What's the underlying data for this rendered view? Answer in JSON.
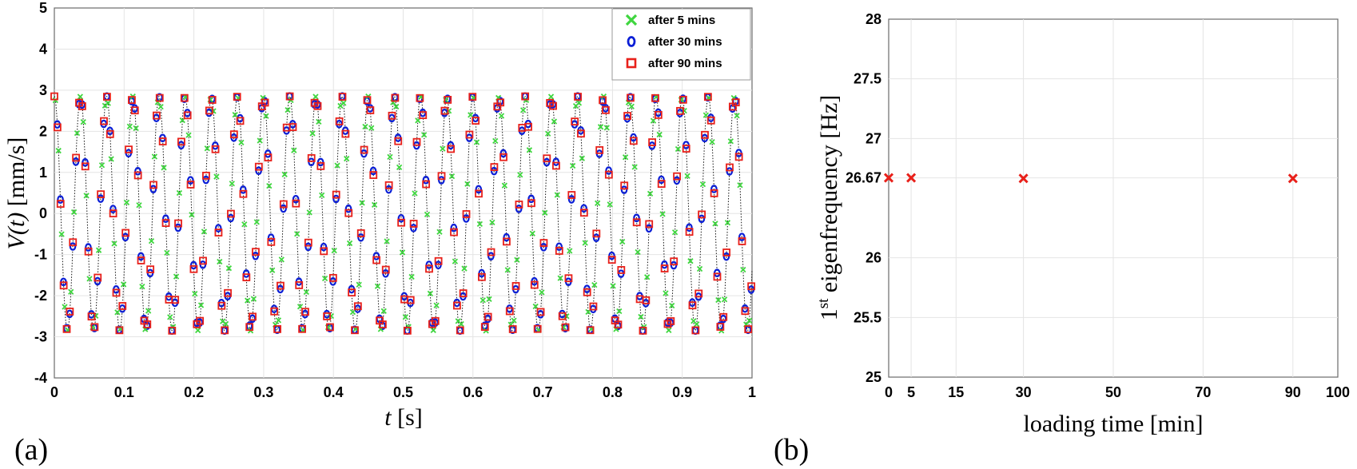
{
  "chart_data": [
    {
      "type": "scatter",
      "panel_label": "(a)",
      "xlabel_italic": "t",
      "xlabel_unit": "[s]",
      "ylabel_italic": "V(t)",
      "ylabel_unit": "[mm/s]",
      "xlim": [
        0,
        1
      ],
      "ylim": [
        -4,
        5
      ],
      "xticks": [
        "0",
        "0.1",
        "0.2",
        "0.3",
        "0.4",
        "0.5",
        "0.6",
        "0.7",
        "0.8",
        "0.9",
        "1"
      ],
      "yticks": [
        "-4",
        "-3",
        "-2",
        "-1",
        "0",
        "1",
        "2",
        "3",
        "4",
        "5"
      ],
      "grid": true,
      "legend_position": "top-right",
      "signal": {
        "amplitude": 2.85,
        "frequency_hz": 26.67,
        "sample_step_s": 0.00444,
        "connecting_line": "dotted black"
      },
      "series": [
        {
          "name": "after 5 mins",
          "marker": "x",
          "color": "#3fd63f",
          "phase_offset": 0.35
        },
        {
          "name": "after 30 mins",
          "marker": "o",
          "color": "#0b1fd6",
          "phase_offset": 0.95
        },
        {
          "name": "after 90 mins",
          "marker": "s",
          "color": "#e8201a",
          "phase_offset": 0.0
        }
      ]
    },
    {
      "type": "scatter",
      "panel_label": "(b)",
      "xlabel": "loading time [min]",
      "ylabel_base": "1",
      "ylabel_sup": "st",
      "ylabel_rest": " eigenfrequency [Hz]",
      "xlim": [
        0,
        100
      ],
      "ylim": [
        25,
        28
      ],
      "xticks": [
        0,
        5,
        15,
        30,
        50,
        70,
        90,
        100
      ],
      "yticks": [
        25,
        25.5,
        26,
        26.67,
        27,
        27.5,
        28
      ],
      "ytick_labels": [
        "25",
        "25.5",
        "26",
        "26.67",
        "27",
        "27.5",
        "28"
      ],
      "grid": true,
      "series": [
        {
          "marker": "x",
          "color": "#e8201a",
          "x": [
            0,
            5,
            30,
            90
          ],
          "y": [
            26.67,
            26.67,
            26.665,
            26.665
          ]
        }
      ]
    }
  ]
}
